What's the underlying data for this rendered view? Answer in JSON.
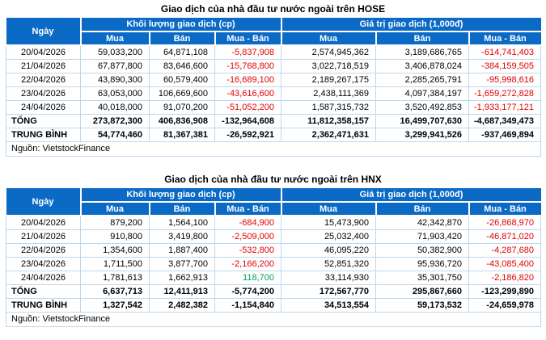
{
  "colors": {
    "header_bg": "#0a6ac6",
    "header_text": "#ffffff",
    "border_light": "#bdd7ee",
    "negative": "#e00000",
    "positive": "#00a651",
    "text": "#000000",
    "page_bg": "#ffffff"
  },
  "chart_data": [
    {
      "type": "table",
      "title": "Giao dịch của nhà đầu tư nước ngoài trên HOSE",
      "header": {
        "date": "Ngày",
        "volume_group": "Khối lượng giao dịch (cp)",
        "value_group": "Giá trị giao dịch (1,000đ)",
        "sub": [
          "Mua",
          "Bán",
          "Mua - Bán",
          "Mua",
          "Bán",
          "Mua - Bán"
        ]
      },
      "rows": [
        {
          "label": "20/04/2026",
          "bold": false,
          "values": [
            "59,033,200",
            "64,871,108",
            "-5,837,908",
            "2,574,945,362",
            "3,189,686,765",
            "-614,741,403"
          ]
        },
        {
          "label": "21/04/2026",
          "bold": false,
          "values": [
            "67,877,800",
            "83,646,600",
            "-15,768,800",
            "3,022,718,519",
            "3,406,878,024",
            "-384,159,505"
          ]
        },
        {
          "label": "22/04/2026",
          "bold": false,
          "values": [
            "43,890,300",
            "60,579,400",
            "-16,689,100",
            "2,189,267,175",
            "2,285,265,791",
            "-95,998,616"
          ]
        },
        {
          "label": "23/04/2026",
          "bold": false,
          "values": [
            "63,053,000",
            "106,669,600",
            "-43,616,600",
            "2,438,111,369",
            "4,097,384,197",
            "-1,659,272,828"
          ]
        },
        {
          "label": "24/04/2026",
          "bold": false,
          "values": [
            "40,018,000",
            "91,070,200",
            "-51,052,200",
            "1,587,315,732",
            "3,520,492,853",
            "-1,933,177,121"
          ]
        },
        {
          "label": "TỔNG",
          "bold": true,
          "values": [
            "273,872,300",
            "406,836,908",
            "-132,964,608",
            "11,812,358,157",
            "16,499,707,630",
            "-4,687,349,473"
          ]
        },
        {
          "label": "TRUNG BÌNH",
          "bold": true,
          "values": [
            "54,774,460",
            "81,367,381",
            "-26,592,921",
            "2,362,471,631",
            "3,299,941,526",
            "-937,469,894"
          ]
        }
      ],
      "source": "Nguồn: VietstockFinance"
    },
    {
      "type": "table",
      "title": "Giao dịch của nhà đầu tư nước ngoài trên HNX",
      "header": {
        "date": "Ngày",
        "volume_group": "Khối lượng giao dịch (cp)",
        "value_group": "Giá trị giao dịch (1,000đ)",
        "sub": [
          "Mua",
          "Bán",
          "Mua - Bán",
          "Mua",
          "Bán",
          "Mua - Bán"
        ]
      },
      "rows": [
        {
          "label": "20/04/2026",
          "bold": false,
          "values": [
            "879,200",
            "1,564,100",
            "-684,900",
            "15,473,900",
            "42,342,870",
            "-26,868,970"
          ]
        },
        {
          "label": "21/04/2026",
          "bold": false,
          "values": [
            "910,800",
            "3,419,800",
            "-2,509,000",
            "25,032,400",
            "71,903,420",
            "-46,871,020"
          ]
        },
        {
          "label": "22/04/2026",
          "bold": false,
          "values": [
            "1,354,600",
            "1,887,400",
            "-532,800",
            "46,095,220",
            "50,382,900",
            "-4,287,680"
          ]
        },
        {
          "label": "23/04/2026",
          "bold": false,
          "values": [
            "1,711,500",
            "3,877,700",
            "-2,166,200",
            "52,851,320",
            "95,936,720",
            "-43,085,400"
          ]
        },
        {
          "label": "24/04/2026",
          "bold": false,
          "values": [
            "1,781,613",
            "1,662,913",
            "118,700",
            "33,114,930",
            "35,301,750",
            "-2,186,820"
          ]
        },
        {
          "label": "TỔNG",
          "bold": true,
          "values": [
            "6,637,713",
            "12,411,913",
            "-5,774,200",
            "172,567,770",
            "295,867,660",
            "-123,299,890"
          ]
        },
        {
          "label": "TRUNG BÌNH",
          "bold": true,
          "values": [
            "1,327,542",
            "2,482,382",
            "-1,154,840",
            "34,513,554",
            "59,173,532",
            "-24,659,978"
          ]
        }
      ],
      "source": "Nguồn: VietstockFinance"
    }
  ]
}
